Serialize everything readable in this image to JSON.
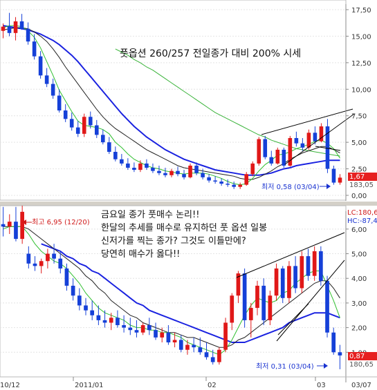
{
  "chart_data": [
    {
      "type": "candlestick",
      "annotation": "풋옵션 260/257 전일종가 대비 200% 시세",
      "ylim": [
        0,
        17.5
      ],
      "yticks": [
        "0,00",
        "2,50",
        "5,00",
        "7,50",
        "10,00",
        "12,50",
        "15,00",
        "17,50"
      ],
      "low_label": "최저 0,58 (03/04)",
      "last_price": "1,67",
      "last_price_2": "183,05",
      "candles": [
        [
          15.5,
          16.2,
          14.8,
          15.9
        ],
        [
          15.9,
          17.2,
          15.0,
          15.3
        ],
        [
          15.3,
          16.8,
          14.6,
          16.4
        ],
        [
          16.4,
          17.1,
          15.6,
          15.7
        ],
        [
          15.7,
          16.3,
          14.2,
          14.5
        ],
        [
          14.5,
          15.2,
          12.8,
          13.1
        ],
        [
          13.1,
          13.6,
          11.0,
          11.3
        ],
        [
          11.3,
          12.0,
          10.2,
          10.5
        ],
        [
          10.5,
          11.0,
          9.1,
          9.4
        ],
        [
          9.4,
          10.0,
          7.8,
          8.0
        ],
        [
          8.0,
          8.6,
          6.9,
          7.2
        ],
        [
          7.2,
          7.8,
          6.1,
          6.4
        ],
        [
          6.4,
          7.0,
          5.5,
          5.8
        ],
        [
          5.8,
          7.7,
          5.5,
          7.4
        ],
        [
          7.4,
          7.9,
          6.3,
          6.6
        ],
        [
          6.6,
          7.1,
          5.4,
          5.7
        ],
        [
          5.7,
          6.2,
          4.8,
          5.0
        ],
        [
          5.0,
          5.5,
          3.9,
          4.1
        ],
        [
          4.1,
          4.6,
          3.2,
          3.4
        ],
        [
          3.4,
          3.9,
          2.8,
          3.0
        ],
        [
          3.0,
          3.5,
          2.4,
          2.6
        ],
        [
          2.6,
          3.1,
          2.2,
          2.4
        ],
        [
          2.4,
          3.3,
          2.2,
          3.0
        ],
        [
          3.0,
          3.4,
          2.4,
          2.6
        ],
        [
          2.6,
          3.0,
          2.1,
          2.3
        ],
        [
          2.3,
          2.8,
          1.9,
          2.1
        ],
        [
          2.1,
          2.6,
          1.7,
          1.9
        ],
        [
          1.9,
          2.5,
          1.7,
          2.3
        ],
        [
          2.3,
          2.7,
          1.8,
          2.0
        ],
        [
          2.0,
          2.4,
          1.5,
          1.7
        ],
        [
          1.7,
          3.0,
          1.6,
          2.8
        ],
        [
          2.8,
          3.1,
          1.9,
          2.1
        ],
        [
          2.1,
          2.5,
          1.5,
          1.7
        ],
        [
          1.7,
          2.0,
          1.2,
          1.4
        ],
        [
          1.4,
          1.8,
          1.1,
          1.3
        ],
        [
          1.3,
          1.6,
          0.9,
          1.1
        ],
        [
          1.1,
          1.5,
          0.8,
          1.0
        ],
        [
          1.0,
          1.3,
          0.6,
          0.8
        ],
        [
          0.8,
          1.2,
          0.6,
          1.0
        ],
        [
          1.0,
          2.2,
          0.9,
          2.0
        ],
        [
          2.0,
          3.2,
          1.8,
          3.0
        ],
        [
          3.0,
          5.5,
          2.8,
          5.3
        ],
        [
          5.3,
          5.6,
          3.4,
          3.6
        ],
        [
          3.6,
          4.2,
          2.8,
          3.0
        ],
        [
          3.0,
          4.5,
          2.9,
          4.3
        ],
        [
          4.3,
          4.5,
          2.6,
          2.8
        ],
        [
          2.8,
          5.6,
          2.7,
          5.4
        ],
        [
          5.4,
          6.0,
          4.6,
          4.9
        ],
        [
          4.9,
          5.4,
          4.2,
          4.5
        ],
        [
          4.5,
          6.2,
          4.3,
          5.9
        ],
        [
          5.9,
          6.5,
          4.8,
          5.1
        ],
        [
          5.1,
          6.8,
          5.0,
          6.5
        ],
        [
          6.5,
          7.2,
          2.1,
          2.5
        ],
        [
          2.5,
          2.8,
          1.0,
          1.2
        ],
        [
          1.2,
          2.0,
          1.0,
          1.67
        ]
      ],
      "ma5": [
        15.8,
        16.0,
        16.0,
        15.9,
        15.5,
        14.9,
        13.9,
        12.6,
        11.3,
        9.9,
        8.9,
        7.9,
        7.0,
        6.6,
        6.5,
        6.4,
        6.2,
        5.8,
        5.0,
        4.5,
        3.9,
        3.4,
        3.1,
        2.8,
        2.6,
        2.5,
        2.3,
        2.2,
        2.1,
        2.0,
        2.1,
        2.1,
        2.1,
        2.0,
        1.8,
        1.6,
        1.3,
        1.1,
        1.0,
        1.1,
        1.6,
        2.3,
        2.9,
        3.3,
        3.8,
        3.9,
        4.1,
        4.4,
        4.6,
        4.8,
        5.1,
        5.2,
        4.9,
        4.4,
        3.5
      ],
      "ma10": [
        15.6,
        15.7,
        15.8,
        15.8,
        15.7,
        15.4,
        15.0,
        14.5,
        13.8,
        13.0,
        12.1,
        11.3,
        10.5,
        9.7,
        8.9,
        8.1,
        7.4,
        6.8,
        6.3,
        5.9,
        5.5,
        5.1,
        4.7,
        4.3,
        4.0,
        3.7,
        3.4,
        3.1,
        2.8,
        2.6,
        2.5,
        2.4,
        2.3,
        2.2,
        2.1,
        2.0,
        1.9,
        1.8,
        1.6,
        1.5,
        1.5,
        1.7,
        2.0,
        2.3,
        2.7,
        3.0,
        3.4,
        3.7,
        4.0,
        4.2,
        4.4,
        4.6,
        4.6,
        4.3,
        4.0
      ],
      "ma20": [
        16.0,
        15.9,
        15.8,
        15.7,
        15.6,
        15.4,
        15.2,
        14.9,
        14.6,
        14.2,
        13.7,
        13.2,
        12.6,
        11.9,
        11.2,
        10.5,
        9.8,
        9.1,
        8.4,
        7.7,
        7.1,
        6.5,
        6.0,
        5.5,
        5.1,
        4.7,
        4.3,
        4.0,
        3.7,
        3.4,
        3.2,
        3.0,
        2.8,
        2.6,
        2.4,
        2.3,
        2.2,
        2.1,
        2.0,
        1.9,
        1.9,
        1.9,
        2.0,
        2.1,
        2.3,
        2.5,
        2.6,
        2.8,
        2.9,
        3.0,
        3.1,
        3.2,
        3.3,
        3.3,
        3.3
      ],
      "ma60": [
        null,
        null,
        null,
        null,
        null,
        null,
        null,
        null,
        null,
        null,
        null,
        null,
        null,
        null,
        null,
        null,
        null,
        null,
        13.8,
        13.5,
        13.2,
        12.8,
        12.5,
        12.1,
        11.8,
        11.4,
        11.0,
        10.6,
        10.2,
        9.8,
        9.4,
        9.0,
        8.6,
        8.2,
        7.8,
        7.5,
        7.2,
        6.9,
        6.6,
        6.3,
        6.0,
        5.7,
        5.5,
        5.2,
        5.0,
        4.8,
        4.6,
        4.4,
        4.3,
        4.2,
        4.1,
        4.0,
        3.9,
        3.8,
        3.7
      ]
    },
    {
      "type": "candlestick",
      "annotation_lines": [
        "금요일 종가 풋매수 논리!!",
        "한달의 추세를 매수로 유지하던 풋 옵션 일봉",
        "신저가를 찍는 종가?  그것도 이틀만에?",
        "당연히 매수가 옳다!!"
      ],
      "ylim": [
        0,
        6.5
      ],
      "yticks": [
        "1,00",
        "2,00",
        "3,00",
        "4,00",
        "5,00",
        "6,00"
      ],
      "high_label": "최고 6,95 (12/20)",
      "low_label": "최저 0,31 (03/04)",
      "hlc": [
        "LC:180,6",
        "HC:-87,4"
      ],
      "last_price": "0,87",
      "last_price_2": "180,65",
      "candles": [
        [
          6.2,
          6.9,
          5.7,
          6.1
        ],
        [
          6.1,
          6.6,
          5.8,
          6.3
        ],
        [
          6.3,
          6.9,
          5.5,
          5.6
        ],
        [
          5.6,
          6.95,
          5.4,
          6.7
        ],
        [
          5.0,
          5.3,
          4.4,
          4.6
        ],
        [
          4.6,
          4.9,
          4.3,
          4.5
        ],
        [
          4.5,
          4.8,
          4.2,
          4.7
        ],
        [
          4.7,
          5.2,
          4.4,
          5.0
        ],
        [
          5.0,
          5.4,
          4.6,
          4.8
        ],
        [
          4.8,
          5.1,
          4.2,
          4.4
        ],
        [
          4.4,
          4.6,
          3.5,
          3.7
        ],
        [
          3.7,
          4.0,
          3.1,
          3.3
        ],
        [
          3.3,
          3.6,
          2.7,
          2.9
        ],
        [
          2.9,
          3.2,
          2.5,
          2.7
        ],
        [
          2.7,
          3.1,
          2.3,
          2.5
        ],
        [
          2.5,
          2.9,
          2.1,
          2.3
        ],
        [
          2.3,
          2.7,
          2.0,
          2.2
        ],
        [
          2.2,
          2.6,
          1.9,
          2.4
        ],
        [
          2.4,
          2.7,
          2.0,
          2.1
        ],
        [
          2.1,
          2.5,
          1.8,
          2.0
        ],
        [
          2.0,
          2.4,
          1.7,
          1.9
        ],
        [
          1.9,
          2.3,
          1.6,
          1.8
        ],
        [
          1.8,
          2.2,
          1.7,
          2.1
        ],
        [
          2.1,
          2.4,
          1.7,
          1.9
        ],
        [
          1.9,
          2.2,
          1.5,
          1.6
        ],
        [
          1.6,
          2.0,
          1.4,
          1.8
        ],
        [
          1.8,
          2.1,
          1.3,
          1.4
        ],
        [
          1.4,
          1.8,
          1.2,
          1.5
        ],
        [
          1.5,
          1.7,
          1.0,
          1.1
        ],
        [
          1.1,
          1.5,
          0.9,
          1.3
        ],
        [
          1.3,
          1.6,
          1.0,
          1.2
        ],
        [
          1.2,
          1.6,
          0.9,
          1.0
        ],
        [
          1.0,
          1.4,
          0.7,
          0.8
        ],
        [
          0.8,
          1.1,
          0.5,
          0.6
        ],
        [
          0.6,
          1.2,
          0.5,
          1.1
        ],
        [
          1.1,
          2.4,
          1.0,
          2.2
        ],
        [
          2.2,
          3.4,
          1.9,
          3.3
        ],
        [
          3.3,
          4.3,
          3.0,
          4.2
        ],
        [
          4.2,
          4.4,
          2.0,
          2.3
        ],
        [
          2.3,
          3.0,
          1.6,
          2.8
        ],
        [
          2.8,
          3.9,
          2.5,
          3.7
        ],
        [
          3.7,
          4.0,
          2.1,
          2.3
        ],
        [
          2.3,
          3.5,
          2.1,
          3.3
        ],
        [
          3.3,
          4.6,
          3.1,
          4.4
        ],
        [
          4.4,
          4.5,
          3.0,
          3.2
        ],
        [
          3.2,
          4.7,
          3.0,
          4.5
        ],
        [
          4.5,
          4.9,
          3.4,
          3.6
        ],
        [
          3.6,
          5.1,
          3.4,
          4.9
        ],
        [
          4.9,
          5.2,
          3.9,
          4.1
        ],
        [
          4.1,
          5.3,
          3.9,
          5.1
        ],
        [
          5.1,
          5.3,
          3.7,
          3.9
        ],
        [
          3.9,
          4.1,
          1.6,
          1.8
        ],
        [
          1.8,
          2.0,
          0.9,
          1.0
        ],
        [
          1.0,
          1.3,
          0.31,
          0.87
        ]
      ],
      "ma5": [
        6.0,
        6.1,
        6.1,
        6.1,
        5.8,
        5.4,
        5.1,
        4.9,
        4.7,
        4.6,
        4.4,
        4.1,
        3.8,
        3.4,
        3.1,
        2.8,
        2.6,
        2.5,
        2.4,
        2.3,
        2.1,
        2.0,
        2.0,
        1.9,
        1.9,
        1.8,
        1.8,
        1.7,
        1.6,
        1.4,
        1.3,
        1.2,
        1.1,
        1.0,
        0.9,
        1.1,
        1.5,
        2.0,
        2.5,
        2.9,
        3.2,
        3.1,
        3.0,
        3.1,
        3.4,
        3.5,
        3.8,
        4.0,
        4.2,
        4.3,
        4.3,
        3.7,
        3.1,
        2.4
      ],
      "ma10": [
        6.1,
        6.1,
        6.1,
        6.1,
        6.0,
        5.8,
        5.6,
        5.4,
        5.2,
        5.0,
        4.8,
        4.6,
        4.4,
        4.1,
        3.9,
        3.6,
        3.4,
        3.1,
        2.9,
        2.7,
        2.5,
        2.4,
        2.2,
        2.1,
        2.0,
        1.9,
        1.8,
        1.8,
        1.7,
        1.6,
        1.6,
        1.5,
        1.4,
        1.3,
        1.2,
        1.2,
        1.3,
        1.5,
        1.6,
        1.8,
        2.0,
        2.2,
        2.4,
        2.6,
        2.8,
        3.0,
        3.2,
        3.4,
        3.6,
        3.8,
        3.9,
        3.9,
        3.6,
        3.2
      ],
      "ma20": [
        null,
        null,
        null,
        null,
        null,
        null,
        5.4,
        5.3,
        5.2,
        5.1,
        4.9,
        4.8,
        4.6,
        4.5,
        4.3,
        4.2,
        4.0,
        3.8,
        3.6,
        3.4,
        3.2,
        3.0,
        2.9,
        2.7,
        2.6,
        2.5,
        2.4,
        2.3,
        2.2,
        2.1,
        2.0,
        1.9,
        1.8,
        1.7,
        1.6,
        1.5,
        1.4,
        1.4,
        1.4,
        1.5,
        1.6,
        1.7,
        1.8,
        1.9,
        2.0,
        2.2,
        2.3,
        2.4,
        2.5,
        2.6,
        2.6,
        2.6,
        2.5,
        2.4
      ]
    }
  ],
  "x_labels": [
    "10/12",
    "2011/01",
    "02",
    "03",
    "03/07"
  ]
}
